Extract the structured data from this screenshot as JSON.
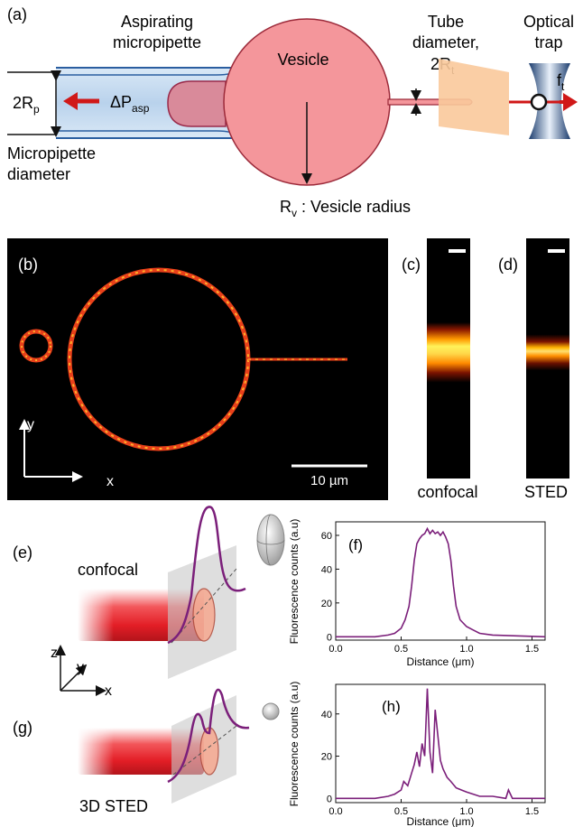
{
  "panel_a": {
    "label": "(a)",
    "pipette_title_1": "Aspirating",
    "pipette_title_2": "micropipette",
    "vesicle": "Vesicle",
    "tube_title_1": "Tube",
    "tube_title_2": "diameter,",
    "tube_title_3": "2R",
    "tube_title_3_sub": "t",
    "trap_title_1": "Optical",
    "trap_title_2": "trap",
    "rp": "2R",
    "rp_sub": "p",
    "dp": "ΔP",
    "dp_sub": "asp",
    "ft": "f",
    "ft_sub": "t",
    "pipette_diam_1": "Micropipette",
    "pipette_diam_2": "diameter",
    "rv": "R",
    "rv_sub": "v",
    "rv_rest": " : Vesicle radius"
  },
  "panel_b": {
    "label": "(b)",
    "y_axis": "y",
    "x_axis": "x",
    "scalebar": "10 µm"
  },
  "panel_c": {
    "label": "(c)",
    "caption": "confocal"
  },
  "panel_d": {
    "label": "(d)",
    "caption": "STED"
  },
  "panel_e": {
    "label": "(e)",
    "caption": "confocal"
  },
  "panel_g": {
    "label": "(g)",
    "caption": "3D STED"
  },
  "axes_3d": {
    "z": "z",
    "y": "y",
    "x": "x"
  },
  "colors": {
    "curve": "#7b1f7a",
    "tube": "#e8242b",
    "vesicle": "#f4969b",
    "pipette": "#bfd7ee"
  },
  "chart_data": [
    {
      "type": "line",
      "panel": "(f)",
      "xlabel": "Distance (μm)",
      "ylabel": "Fluorescence counts (a.u)",
      "xlim": [
        0.0,
        1.6
      ],
      "ylim": [
        -2,
        68
      ],
      "xticks": [
        "0.0",
        "0.5",
        "1.0",
        "1.5"
      ],
      "yticks": [
        "0",
        "20",
        "40",
        "60"
      ],
      "x": [
        0.0,
        0.3,
        0.4,
        0.45,
        0.5,
        0.53,
        0.56,
        0.58,
        0.6,
        0.62,
        0.64,
        0.66,
        0.68,
        0.7,
        0.72,
        0.74,
        0.76,
        0.78,
        0.8,
        0.82,
        0.84,
        0.86,
        0.88,
        0.9,
        0.92,
        0.95,
        1.0,
        1.05,
        1.1,
        1.2,
        1.6
      ],
      "y": [
        0,
        0,
        1,
        2,
        5,
        10,
        18,
        30,
        45,
        55,
        58,
        60,
        61,
        64,
        61,
        63,
        61,
        62,
        60,
        62,
        59,
        55,
        45,
        30,
        18,
        10,
        6,
        4,
        2,
        1,
        0
      ]
    },
    {
      "type": "line",
      "panel": "(h)",
      "xlabel": "Distance (μm)",
      "ylabel": "Fluorescence counts (a.u)",
      "xlim": [
        0.0,
        1.6
      ],
      "ylim": [
        -2,
        54
      ],
      "xticks": [
        "0.0",
        "0.5",
        "1.0",
        "1.5"
      ],
      "yticks": [
        "0",
        "20",
        "40"
      ],
      "x": [
        0.0,
        0.3,
        0.4,
        0.45,
        0.5,
        0.52,
        0.55,
        0.58,
        0.6,
        0.62,
        0.64,
        0.66,
        0.68,
        0.7,
        0.72,
        0.74,
        0.76,
        0.78,
        0.8,
        0.82,
        0.85,
        0.88,
        0.92,
        0.96,
        1.0,
        1.05,
        1.1,
        1.2,
        1.3,
        1.32,
        1.35,
        1.6
      ],
      "y": [
        0,
        0,
        1,
        2,
        4,
        8,
        6,
        12,
        16,
        22,
        15,
        26,
        20,
        52,
        22,
        12,
        42,
        30,
        18,
        14,
        10,
        8,
        5,
        4,
        3,
        2,
        1,
        1,
        0,
        4,
        0,
        0
      ]
    }
  ]
}
